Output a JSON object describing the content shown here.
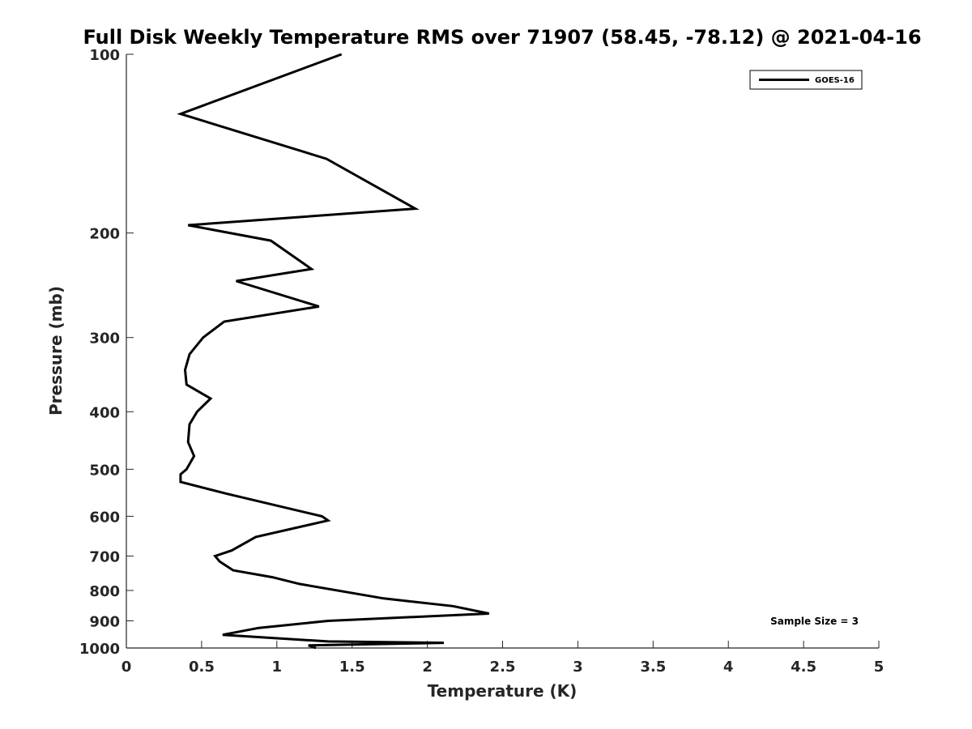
{
  "chart_data": {
    "type": "line",
    "title": "Full Disk Weekly Temperature RMS over 71907 (58.45, -78.12) @ 2021-04-16",
    "xlabel": "Temperature (K)",
    "ylabel": "Pressure (mb)",
    "xlim": [
      0,
      5
    ],
    "ylim": [
      100,
      1000
    ],
    "y_scale": "log",
    "y_reversed": true,
    "x_ticks": [
      "0",
      "0.5",
      "1",
      "1.5",
      "2",
      "2.5",
      "3",
      "3.5",
      "4",
      "4.5",
      "5"
    ],
    "y_ticks": [
      "100",
      "200",
      "300",
      "400",
      "500",
      "600",
      "700",
      "800",
      "900",
      "1000"
    ],
    "grid": false,
    "legend_position": "top-right",
    "series": [
      {
        "name": "GOES-16",
        "color": "#000000",
        "x": [
          1.43,
          0.36,
          1.33,
          1.92,
          0.41,
          0.96,
          1.23,
          0.73,
          1.28,
          0.65,
          0.51,
          0.42,
          0.39,
          0.4,
          0.56,
          0.47,
          0.42,
          0.41,
          0.45,
          0.4,
          0.36,
          0.36,
          0.67,
          1.3,
          1.34,
          0.86,
          0.7,
          0.59,
          0.62,
          0.71,
          0.97,
          1.15,
          1.71,
          2.17,
          2.41,
          1.34,
          0.88,
          0.64,
          1.34,
          2.11,
          1.21,
          1.26
        ],
        "y": [
          100,
          126,
          150,
          182,
          194,
          206,
          230,
          241,
          266,
          282,
          300,
          320,
          340,
          360,
          380,
          400,
          420,
          450,
          475,
          500,
          510,
          525,
          550,
          600,
          610,
          650,
          685,
          700,
          715,
          740,
          760,
          780,
          825,
          850,
          875,
          900,
          925,
          950,
          975,
          980,
          990,
          1000
        ]
      }
    ],
    "annotations": [
      "Sample Size = 3"
    ]
  }
}
